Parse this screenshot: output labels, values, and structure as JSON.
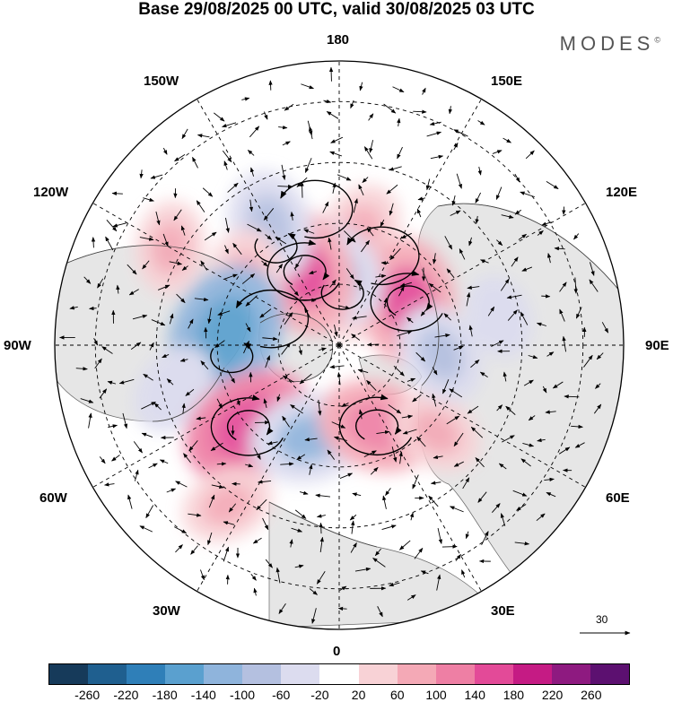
{
  "title": "Base 29/08/2025 00 UTC, valid 30/08/2025 03 UTC",
  "brand": {
    "name": "MODES",
    "mark": "©"
  },
  "longitude_labels": {
    "n180": "180",
    "n150e": "150E",
    "n120e": "120E",
    "n90e": "90E",
    "n60e": "60E",
    "n30e": "30E",
    "n0": "0",
    "n30w": "30W",
    "n60w": "60W",
    "n90w": "90W",
    "n120w": "120W",
    "n150w": "150W"
  },
  "wind_scale": {
    "label": "30"
  },
  "colorbar": {
    "colors": [
      "#163a5a",
      "#1f5f8f",
      "#2f7fb8",
      "#5aa0cf",
      "#8fb4dc",
      "#b4c0e0",
      "#dcdcef",
      "#ffffff",
      "#f8d2d6",
      "#f4a9b6",
      "#ee7fa4",
      "#e34a98",
      "#c51b84",
      "#8e1a80",
      "#5c1070"
    ],
    "labels": [
      "-260",
      "-220",
      "-180",
      "-140",
      "-100",
      "-60",
      "-20",
      "20",
      "60",
      "100",
      "140",
      "180",
      "220",
      "260"
    ]
  },
  "anomaly_blobs": [
    {
      "lon": 170,
      "lat": 62,
      "value": 80
    },
    {
      "lon": 160,
      "lat": 78,
      "value": 40
    },
    {
      "lon": 122,
      "lat": 70,
      "value": 140
    },
    {
      "lon": -178,
      "lat": 72,
      "value": -100
    },
    {
      "lon": -155,
      "lat": 70,
      "value": 140
    },
    {
      "lon": -150,
      "lat": 56,
      "value": -100
    },
    {
      "lon": -125,
      "lat": 62,
      "value": 80
    },
    {
      "lon": -95,
      "lat": 62,
      "value": -180
    },
    {
      "lon": -75,
      "lat": 48,
      "value": -60
    },
    {
      "lon": -48,
      "lat": 60,
      "value": 160
    },
    {
      "lon": -18,
      "lat": 66,
      "value": -120
    },
    {
      "lon": 25,
      "lat": 68,
      "value": 120
    },
    {
      "lon": 48,
      "lat": 58,
      "value": 60
    },
    {
      "lon": 85,
      "lat": 65,
      "value": -80
    },
    {
      "lon": 100,
      "lat": 50,
      "value": -40
    },
    {
      "lon": -120,
      "lat": 42,
      "value": 60
    },
    {
      "lon": -35,
      "lat": 42,
      "value": 60
    }
  ],
  "gyres": [
    {
      "lon": -150,
      "lat": 56,
      "dir": "ccw"
    },
    {
      "lon": -95,
      "lat": 62,
      "dir": "ccw"
    },
    {
      "lon": -178,
      "lat": 72,
      "dir": "ccw"
    },
    {
      "lon": -48,
      "lat": 60,
      "dir": "cw"
    },
    {
      "lon": 25,
      "lat": 68,
      "dir": "cw"
    },
    {
      "lon": 122,
      "lat": 70,
      "dir": "cw"
    },
    {
      "lon": -155,
      "lat": 70,
      "dir": "cw"
    }
  ]
}
